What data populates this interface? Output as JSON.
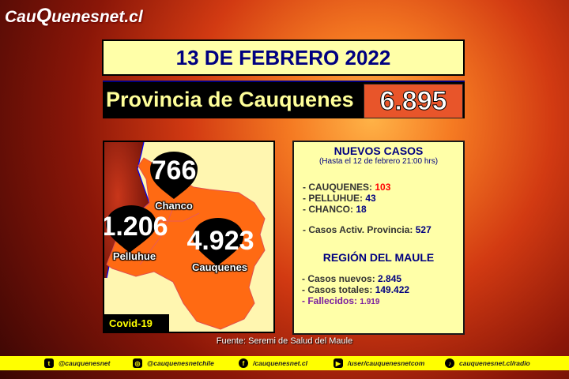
{
  "logo": {
    "pre": "Cau",
    "q": "Q",
    "post": "uenesnet.cl"
  },
  "date": "13 DE FEBRERO 2022",
  "province": {
    "label": "Provincia de Cauquenes",
    "total": "6.895"
  },
  "map": {
    "pins": [
      {
        "value": "766",
        "name": "Chanco"
      },
      {
        "value": "1.206",
        "name": "Pelluhue"
      },
      {
        "value": "4.923",
        "name": "Cauquenes"
      }
    ],
    "badge": "Covid-19",
    "colors": {
      "province": "#ff6a13",
      "land": "#fff6b0",
      "coast": "#0000ff"
    }
  },
  "info": {
    "title": "NUEVOS CASOS",
    "subtitle": "(Hasta el 12 de febrero  21:00 hrs)",
    "communes": [
      {
        "label": "- CAUQUENES: ",
        "value": "103"
      },
      {
        "label": "- PELLUHUE: ",
        "value": "43"
      },
      {
        "label": "- CHANCO: ",
        "value": "18"
      }
    ],
    "active": {
      "label": "- Casos Activ. Provincia: ",
      "value": "527"
    },
    "region_title": "REGIÓN DEL MAULE",
    "region": [
      {
        "label": "- Casos nuevos: ",
        "value": "2.845"
      },
      {
        "label": "- Casos totales: ",
        "value": "149.422"
      }
    ],
    "deaths": {
      "label": "- Fallecidos: ",
      "value": "1.919"
    },
    "colors": {
      "highlight": "#ff0000",
      "value": "#000080",
      "deaths": "#7a1fa0"
    }
  },
  "source": "Fuente: Seremi de Salud del Maule",
  "footer": [
    {
      "icon": "twitter-icon",
      "text": "@cauquenesnet"
    },
    {
      "icon": "instagram-icon",
      "text": "@cauquenesnetchile"
    },
    {
      "icon": "facebook-icon",
      "text": "/cauquenesnet.cl"
    },
    {
      "icon": "youtube-icon",
      "text": "/user/cauquenesnetcom"
    },
    {
      "icon": "radio-icon",
      "text": "cauquenesnet.cl/radio"
    }
  ]
}
